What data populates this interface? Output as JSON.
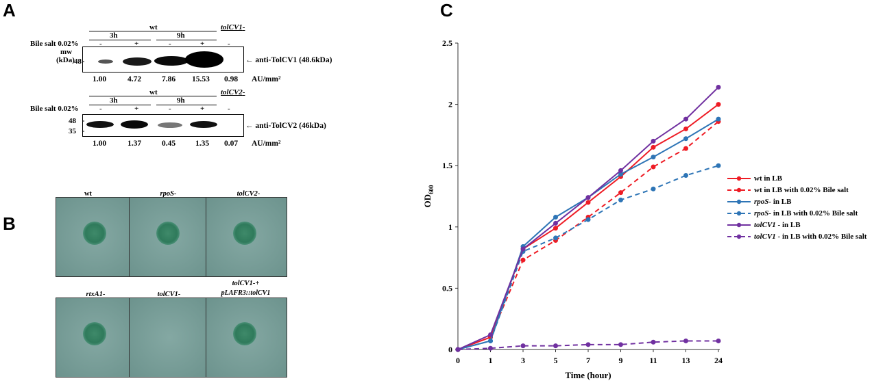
{
  "panels": {
    "a": "A",
    "b": "B",
    "c": "C"
  },
  "panel_a": {
    "blot1": {
      "wt_label": "wt",
      "mutant_label": "tolCV1",
      "mutant_suffix": "-",
      "time1": "3h",
      "time2": "9h",
      "bile_label": "Bile salt 0.02%",
      "signs": [
        "-",
        "+",
        "-",
        "+",
        "-"
      ],
      "mw_label": "mw",
      "kda_label": "(kDa)",
      "marker": "48",
      "antibody": "anti-TolCV1 (48.6kDa)",
      "values": [
        "1.00",
        "4.72",
        "7.86",
        "15.53",
        "0.98"
      ],
      "unit": "AU/mm²"
    },
    "blot2": {
      "wt_label": "wt",
      "mutant_label": "tolCV2",
      "mutant_suffix": "-",
      "time1": "3h",
      "time2": "9h",
      "bile_label": "Bile salt 0.02%",
      "signs": [
        "-",
        "+",
        "-",
        "+",
        "-"
      ],
      "marker_top": "48",
      "marker_bottom": "35",
      "antibody": "anti-TolCV2 (46kDa)",
      "values": [
        "1.00",
        "1.37",
        "0.45",
        "1.35",
        "0.07"
      ],
      "unit": "AU/mm²"
    }
  },
  "panel_b": {
    "plates": [
      {
        "label": "wt",
        "italic": false,
        "colony": true
      },
      {
        "label": "rpoS-",
        "italic": true,
        "colony": true
      },
      {
        "label": "tolCV2-",
        "italic": true,
        "colony": true
      },
      {
        "label": "rtxA1-",
        "italic": true,
        "colony": true
      },
      {
        "label": "tolCV1-",
        "italic": true,
        "colony": false
      },
      {
        "label": "tolCV1-+",
        "label2": "pLAFR3::tolCV1",
        "italic": true,
        "colony": true
      }
    ],
    "colors": {
      "plate": "#739c96",
      "colony": "#2f7a5b"
    }
  },
  "chart_data": {
    "type": "line",
    "title": "",
    "xlabel": "Time (hour)",
    "ylabel": "OD",
    "ylabel_sub": "600",
    "categories": [
      "0",
      "1",
      "3",
      "5",
      "7",
      "9",
      "11",
      "13",
      "24"
    ],
    "ylim": [
      0,
      2.5
    ],
    "yticks": [
      "0",
      "0.5",
      "1",
      "1.5",
      "2",
      "2.5"
    ],
    "grid": false,
    "legend_position": "right",
    "series": [
      {
        "name": "wt in LB",
        "color": "#ee1c25",
        "dashed": false,
        "values": [
          0,
          0.1,
          0.82,
          0.99,
          1.2,
          1.41,
          1.65,
          1.8,
          2.0
        ]
      },
      {
        "name": "wt in LB with 0.02% Bile salt",
        "color": "#ee1c25",
        "dashed": true,
        "values": [
          0,
          0.1,
          0.73,
          0.89,
          1.08,
          1.28,
          1.49,
          1.64,
          1.86
        ]
      },
      {
        "name": "rpoS- in LB",
        "color": "#2e75b6",
        "dashed": false,
        "values": [
          0,
          0.07,
          0.84,
          1.08,
          1.24,
          1.43,
          1.57,
          1.72,
          1.88
        ]
      },
      {
        "name": "rpoS- in LB with 0.02% Bile salt",
        "color": "#2e75b6",
        "dashed": true,
        "values": [
          0,
          0.07,
          0.8,
          0.91,
          1.06,
          1.22,
          1.31,
          1.42,
          1.5
        ]
      },
      {
        "name": "tolCV1- in LB",
        "color": "#7030a0",
        "dashed": false,
        "values": [
          0,
          0.12,
          0.82,
          1.03,
          1.24,
          1.46,
          1.7,
          1.88,
          2.14
        ]
      },
      {
        "name": "tolCV1- in LB with 0.02% Bile salt",
        "color": "#7030a0",
        "dashed": true,
        "values": [
          0,
          0.01,
          0.03,
          0.03,
          0.04,
          0.04,
          0.06,
          0.07,
          0.07
        ]
      }
    ],
    "legend_labels": [
      {
        "prefix": "wt",
        "rest": " in LB",
        "italic": false
      },
      {
        "prefix": "wt",
        "rest": " in LB with 0.02% Bile salt",
        "italic": false
      },
      {
        "prefix": "rpoS-",
        "rest": " in LB",
        "italic": true
      },
      {
        "prefix": "rpoS-",
        "rest": " in LB with 0.02% Bile salt",
        "italic": true
      },
      {
        "prefix": "tolCV1",
        "rest": " - in LB",
        "italic": true
      },
      {
        "prefix": "tolCV1",
        "rest": " - in LB with 0.02% Bile salt",
        "italic": true
      }
    ]
  }
}
